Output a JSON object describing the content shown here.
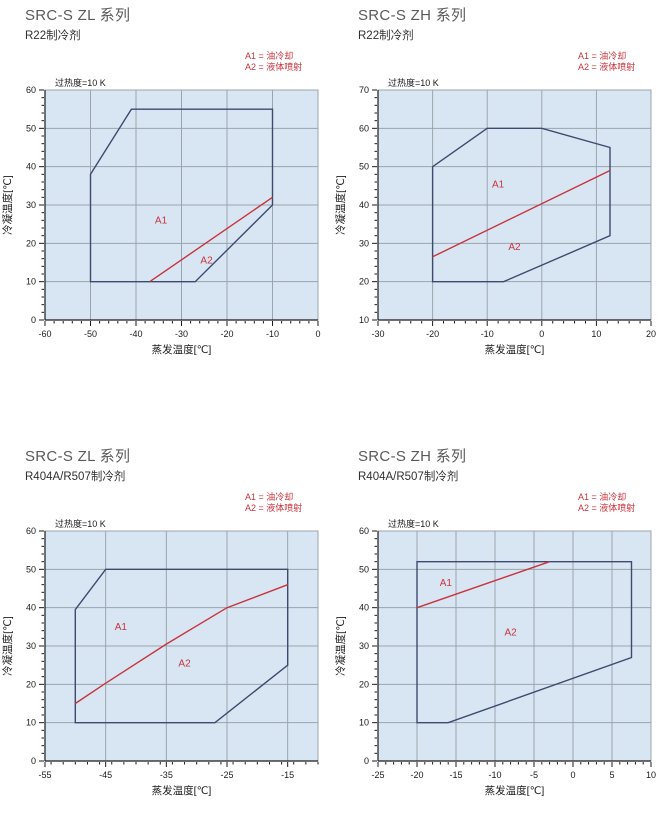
{
  "colors": {
    "plot_bg": "#d8e6f3",
    "grid": "#9ba4ae",
    "envelope": "#3e4a6d",
    "divider": "#c8333b",
    "red_text": "#c8333b",
    "title_text": "#5a5a5a",
    "axis_text": "#1b1b1b"
  },
  "chart_data": [
    {
      "type": "line",
      "title": "SRC-S ZL 系列",
      "subtitle": "R22制冷剂",
      "superheat_note": "过热度=10 K",
      "legend": [
        "A1 = 油冷却",
        "A2 = 液体喷射"
      ],
      "xlabel": "蒸发温度[℃]",
      "ylabel": "冷凝温度[℃]",
      "xlim": [
        -60,
        0
      ],
      "ylim": [
        0,
        60
      ],
      "xticks": [
        -60,
        -50,
        -40,
        -30,
        -20,
        -10,
        0
      ],
      "yticks": [
        0,
        10,
        20,
        30,
        40,
        50,
        60
      ],
      "x_minor_step": 2,
      "y_minor_step": 2,
      "grid": true,
      "series": [
        {
          "name": "运行范围边界",
          "color_key": "envelope",
          "closed": true,
          "points": [
            [
              -50,
              38
            ],
            [
              -41,
              55
            ],
            [
              -10,
              55
            ],
            [
              -10,
              30
            ],
            [
              -27,
              10
            ],
            [
              -50,
              10
            ]
          ]
        },
        {
          "name": "A1/A2分界线",
          "color_key": "divider",
          "closed": false,
          "points": [
            [
              -37,
              10
            ],
            [
              -10,
              32
            ]
          ]
        }
      ],
      "region_labels": [
        {
          "text": "A1",
          "x": -34.5,
          "y": 26
        },
        {
          "text": "A2",
          "x": -24.5,
          "y": 15.5
        }
      ]
    },
    {
      "type": "line",
      "title": "SRC-S ZH 系列",
      "subtitle": "R22制冷剂",
      "superheat_note": "过热度=10 K",
      "legend": [
        "A1 = 油冷却",
        "A2 = 液体喷射"
      ],
      "xlabel": "蒸发温度[℃]",
      "ylabel": "冷凝温度[℃]",
      "xlim": [
        -30,
        20
      ],
      "ylim": [
        10,
        70
      ],
      "xticks": [
        -30,
        -20,
        -10,
        0,
        10,
        20
      ],
      "yticks": [
        10,
        20,
        30,
        40,
        50,
        60,
        70
      ],
      "x_minor_step": 2,
      "y_minor_step": 2,
      "grid": true,
      "series": [
        {
          "name": "运行范围边界",
          "color_key": "envelope",
          "closed": true,
          "points": [
            [
              -20,
              50
            ],
            [
              -10,
              60
            ],
            [
              0,
              60
            ],
            [
              12.5,
              55
            ],
            [
              12.5,
              32
            ],
            [
              -7,
              20
            ],
            [
              -20,
              20
            ]
          ]
        },
        {
          "name": "A1/A2分界线",
          "color_key": "divider",
          "closed": false,
          "points": [
            [
              -20,
              26.5
            ],
            [
              12.5,
              49
            ]
          ]
        }
      ],
      "region_labels": [
        {
          "text": "A1",
          "x": -8,
          "y": 45.3
        },
        {
          "text": "A2",
          "x": -5,
          "y": 29
        }
      ]
    },
    {
      "type": "line",
      "title": "SRC-S ZL 系列",
      "subtitle": "R404A/R507制冷剂",
      "superheat_note": "过热度=10 K",
      "legend": [
        "A1 = 油冷却",
        "A2 = 液体喷射"
      ],
      "xlabel": "蒸发温度[℃]",
      "ylabel": "冷凝温度[℃]",
      "xlim": [
        -55,
        -10
      ],
      "ylim": [
        0,
        60
      ],
      "xticks": [
        -55,
        -45,
        -35,
        -25,
        -15
      ],
      "yticks": [
        0,
        10,
        20,
        30,
        40,
        50,
        60
      ],
      "x_minor_step": 2,
      "y_minor_step": 2,
      "grid": true,
      "series": [
        {
          "name": "运行范围边界",
          "color_key": "envelope",
          "closed": true,
          "points": [
            [
              -50,
              39.5
            ],
            [
              -45,
              50
            ],
            [
              -15,
              50
            ],
            [
              -15,
              25
            ],
            [
              -27,
              10
            ],
            [
              -50,
              10
            ]
          ]
        },
        {
          "name": "A1/A2分界线",
          "color_key": "divider",
          "closed": false,
          "points": [
            [
              -50,
              15
            ],
            [
              -45,
              20.3
            ],
            [
              -35,
              30.5
            ],
            [
              -25,
              40
            ],
            [
              -15,
              46
            ]
          ]
        }
      ],
      "region_labels": [
        {
          "text": "A1",
          "x": -42.5,
          "y": 35
        },
        {
          "text": "A2",
          "x": -32,
          "y": 25.5
        }
      ]
    },
    {
      "type": "line",
      "title": "SRC-S ZH 系列",
      "subtitle": "R404A/R507制冷剂",
      "superheat_note": "过热度=10 K",
      "legend": [
        "A1 = 油冷却",
        "A2 = 液体喷射"
      ],
      "xlabel": "蒸发温度[℃]",
      "ylabel": "冷凝温度[℃]",
      "xlim": [
        -25,
        10
      ],
      "ylim": [
        0,
        60
      ],
      "xticks": [
        -25,
        -20,
        -15,
        -10,
        -5,
        0,
        5,
        10
      ],
      "yticks": [
        0,
        10,
        20,
        30,
        40,
        50,
        60
      ],
      "x_minor_step": 1,
      "y_minor_step": 2,
      "grid": true,
      "series": [
        {
          "name": "运行范围边界",
          "color_key": "envelope",
          "closed": true,
          "points": [
            [
              -20,
              52
            ],
            [
              7.5,
              52
            ],
            [
              7.5,
              27
            ],
            [
              -16,
              10
            ],
            [
              -20,
              10
            ]
          ]
        },
        {
          "name": "A1/A2分界线",
          "color_key": "divider",
          "closed": false,
          "points": [
            [
              -20,
              40
            ],
            [
              -3,
              52
            ]
          ]
        }
      ],
      "region_labels": [
        {
          "text": "A1",
          "x": -16.3,
          "y": 46.5
        },
        {
          "text": "A2",
          "x": -8,
          "y": 33.5
        }
      ]
    }
  ]
}
